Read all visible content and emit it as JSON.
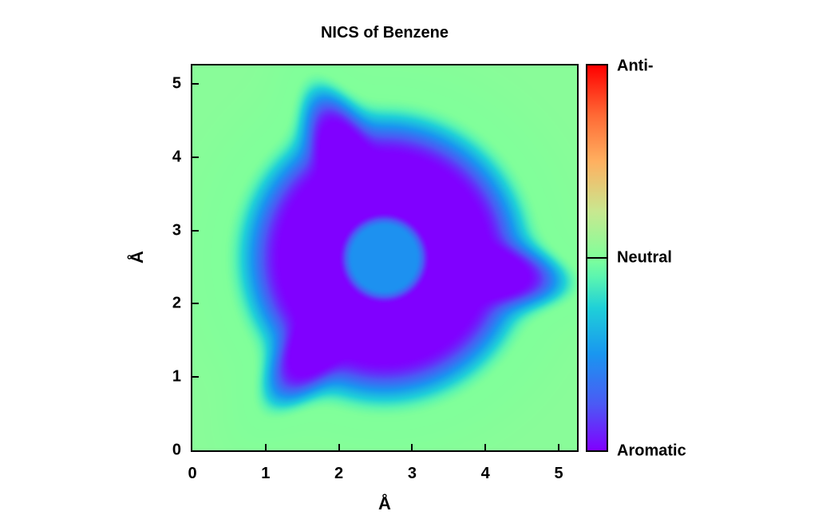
{
  "chart_data": {
    "type": "heatmap",
    "title": "NICS of Benzene",
    "xlabel": "Å",
    "ylabel": "Å",
    "xlim": [
      0,
      5.25
    ],
    "ylim": [
      0,
      5.25
    ],
    "x_ticks": [
      "0",
      "1",
      "2",
      "3",
      "4",
      "5"
    ],
    "y_ticks": [
      "0",
      "1",
      "2",
      "3",
      "4",
      "5"
    ],
    "colorbar": {
      "labels": {
        "max": "Anti-",
        "mid": "Neutral",
        "min": "Aromatic"
      },
      "colors": [
        "#8000ff",
        "#1996f0",
        "#80ff9a",
        "#ffb060",
        "#ff0000"
      ]
    },
    "features": {
      "ring_center": [
        2.62,
        2.62
      ],
      "ring_radius": 1.65,
      "core_radius": 0.55,
      "lobe_count": 6,
      "lobe_amplitude": 0.55,
      "lobe_angle_offset_deg": 112
    }
  }
}
